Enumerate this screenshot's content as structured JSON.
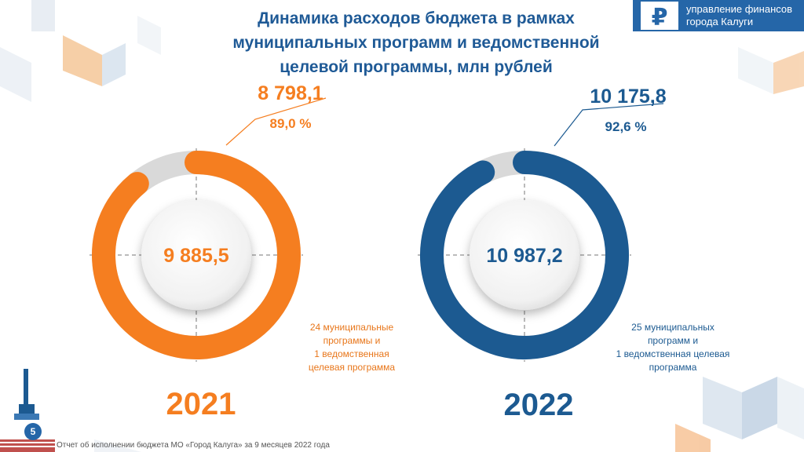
{
  "header": {
    "title_lines": [
      "Динамика расходов бюджета в рамках",
      "муниципальных программ и ведомственной",
      "целевой программы, млн рублей"
    ],
    "org_lines": [
      "управление финансов",
      "города Калуги"
    ],
    "logo_icon": "ruble-icon"
  },
  "footer": {
    "text": "Отчет об исполнении бюджета МО «Город Калуга» за 9 месяцев 2022 года",
    "page_number": "5"
  },
  "colors": {
    "orange": "#f57e20",
    "blue": "#1c5a91",
    "track": "#d9d9d9"
  },
  "chart_data": [
    {
      "type": "donut",
      "year": "2021",
      "total": 9885.5,
      "total_label": "9 885,5",
      "executed": 8798.1,
      "executed_label": "8 798,1",
      "percent": 89.0,
      "percent_label": "89,0 %",
      "color": "#f57e20",
      "note_lines": [
        "24 муниципальные",
        "программы и",
        "1 ведомственная",
        "целевая программа"
      ]
    },
    {
      "type": "donut",
      "year": "2022",
      "total": 10987.2,
      "total_label": "10 987,2",
      "executed": 10175.8,
      "executed_label": "10 175,8",
      "percent": 92.6,
      "percent_label": "92,6 %",
      "color": "#1c5a91",
      "note_lines": [
        "25 муниципальных",
        "программ и",
        "1 ведомственная целевая",
        "программа"
      ]
    }
  ]
}
